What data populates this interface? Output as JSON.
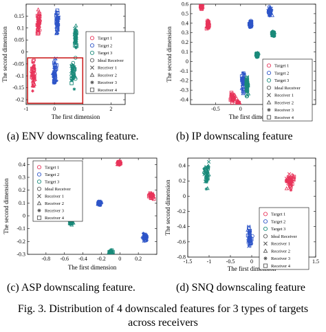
{
  "figure_caption": {
    "line1": "Fig. 3.   Distribution of 4 downscaled features for 3 types of targets",
    "line2": "across receivers"
  },
  "subcaptions": {
    "a": "(a) ENV downscaling feature.",
    "b": "(b) IP downscaling feature",
    "c": "(c) ASP downscaling feature.",
    "d": "(d) SNQ downscaling feature"
  },
  "legend_items": [
    {
      "label": "Target 1",
      "marker": "circle",
      "color": "#e8345a"
    },
    {
      "label": "Target 2",
      "marker": "circle",
      "color": "#2e55c8"
    },
    {
      "label": "Target 3",
      "marker": "circle",
      "color": "#1a8a7a"
    },
    {
      "label": "Ideal Receiver",
      "marker": "circle",
      "color": "#555555"
    },
    {
      "label": "Receiver 1",
      "marker": "x",
      "color": "#555555"
    },
    {
      "label": "Receiver 2",
      "marker": "triangle",
      "color": "#555555"
    },
    {
      "label": "Receiver 3",
      "marker": "star",
      "color": "#555555"
    },
    {
      "label": "Receiver 4",
      "marker": "square",
      "color": "#555555"
    }
  ],
  "colors": {
    "target1": "#e8345a",
    "target2": "#2e55c8",
    "target3": "#1a8a7a",
    "highlight_box": "#cc2020"
  },
  "chart_data": [
    {
      "id": "a",
      "type": "scatter",
      "xlabel": "The first dimension",
      "ylabel": "The second dimension",
      "xlim": [
        -1,
        2.5
      ],
      "ylim": [
        -0.22,
        0.2
      ],
      "xticks": [
        -1,
        0,
        1,
        2
      ],
      "yticks": [
        -0.2,
        -0.15,
        -0.1,
        -0.05,
        0,
        0.05,
        0.1,
        0.15
      ],
      "annotation": "red rectangle highlighting the lower clusters",
      "clusters": [
        {
          "target": 1,
          "x": -0.75,
          "y": -0.09,
          "sx": 0.06,
          "sy": 0.045
        },
        {
          "target": 2,
          "x": 0.0,
          "y": -0.09,
          "sx": 0.06,
          "sy": 0.045
        },
        {
          "target": 3,
          "x": 0.65,
          "y": -0.09,
          "sx": 0.07,
          "sy": 0.045
        },
        {
          "target": 1,
          "x": -0.55,
          "y": 0.12,
          "sx": 0.05,
          "sy": 0.04
        },
        {
          "target": 2,
          "x": 0.1,
          "y": 0.12,
          "sx": 0.05,
          "sy": 0.04
        },
        {
          "target": 3,
          "x": 0.75,
          "y": 0.06,
          "sx": 0.05,
          "sy": 0.03
        }
      ]
    },
    {
      "id": "b",
      "type": "scatter",
      "xlabel": "The first dimension",
      "ylabel": "The second dimension",
      "xlim": [
        -1,
        1.5
      ],
      "ylim": [
        -0.45,
        0.6
      ],
      "xticks": [
        -0.5,
        0,
        0.5
      ],
      "yticks": [
        -0.4,
        -0.3,
        -0.2,
        -0.1,
        0,
        0.1,
        0.2,
        0.3,
        0.4,
        0.5,
        0.6
      ],
      "clusters": [
        {
          "target": 1,
          "x": -0.78,
          "y": 0.57,
          "sx": 0.02,
          "sy": 0.02
        },
        {
          "target": 1,
          "x": -0.65,
          "y": 0.39,
          "sx": 0.02,
          "sy": 0.03
        },
        {
          "target": 2,
          "x": 0.59,
          "y": 0.52,
          "sx": 0.03,
          "sy": 0.03
        },
        {
          "target": 2,
          "x": 0.2,
          "y": 0.39,
          "sx": 0.02,
          "sy": 0.02
        },
        {
          "target": 3,
          "x": 0.65,
          "y": 0.29,
          "sx": 0.03,
          "sy": 0.02
        },
        {
          "target": 3,
          "x": 0.33,
          "y": 0.07,
          "sx": 0.02,
          "sy": 0.02
        },
        {
          "target": 2,
          "x": 0.05,
          "y": -0.22,
          "sx": 0.03,
          "sy": 0.1
        },
        {
          "target": 3,
          "x": 0.13,
          "y": -0.24,
          "sx": 0.02,
          "sy": 0.1
        },
        {
          "target": 1,
          "x": -0.15,
          "y": -0.38,
          "sx": 0.04,
          "sy": 0.04
        },
        {
          "target": 1,
          "x": -0.05,
          "y": -0.44,
          "sx": 0.02,
          "sy": 0.02
        }
      ]
    },
    {
      "id": "c",
      "type": "scatter",
      "xlabel": "The first dimension",
      "ylabel": "The second dimension",
      "xlim": [
        -1,
        0.4
      ],
      "ylim": [
        -0.3,
        0.45
      ],
      "xticks": [
        -0.8,
        -0.6,
        -0.4,
        -0.2,
        0,
        0.2
      ],
      "yticks": [
        -0.3,
        -0.2,
        -0.1,
        0,
        0.1,
        0.2,
        0.3,
        0.4
      ],
      "clusters": [
        {
          "target": 1,
          "x": -0.01,
          "y": 0.41,
          "sx": 0.015,
          "sy": 0.015
        },
        {
          "target": 1,
          "x": 0.34,
          "y": 0.16,
          "sx": 0.02,
          "sy": 0.02
        },
        {
          "target": 2,
          "x": -0.22,
          "y": 0.1,
          "sx": 0.015,
          "sy": 0.012
        },
        {
          "target": 2,
          "x": 0.27,
          "y": -0.17,
          "sx": 0.02,
          "sy": 0.02
        },
        {
          "target": 3,
          "x": -0.53,
          "y": -0.05,
          "sx": 0.015,
          "sy": 0.012
        },
        {
          "target": 3,
          "x": -0.1,
          "y": -0.285,
          "sx": 0.02,
          "sy": 0.012
        }
      ]
    },
    {
      "id": "d",
      "type": "scatter",
      "xlabel": "The first dimension",
      "ylabel": "The second dimension",
      "xlim": [
        -1.5,
        1.5
      ],
      "ylim": [
        -0.8,
        0.5
      ],
      "xticks": [
        -1.5,
        -1,
        -0.5,
        0,
        0.5,
        1,
        1.5
      ],
      "yticks": [
        -0.8,
        -0.6,
        -0.4,
        -0.2,
        0,
        0.2,
        0.4
      ],
      "clusters": [
        {
          "target": 3,
          "x": -1.05,
          "y": 0.3,
          "sx": 0.06,
          "sy": 0.12
        },
        {
          "target": 1,
          "x": 0.9,
          "y": 0.2,
          "sx": 0.08,
          "sy": 0.1
        },
        {
          "target": 2,
          "x": -0.05,
          "y": -0.55,
          "sx": 0.04,
          "sy": 0.12
        }
      ]
    }
  ]
}
